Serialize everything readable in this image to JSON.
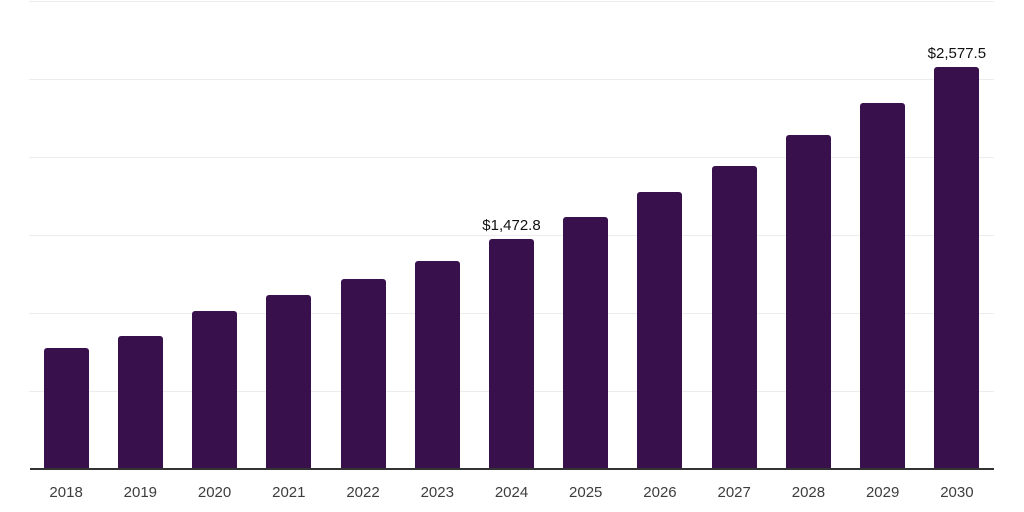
{
  "chart_data": {
    "type": "bar",
    "title": "",
    "xlabel": "",
    "ylabel": "",
    "categories": [
      "2018",
      "2019",
      "2020",
      "2021",
      "2022",
      "2023",
      "2024",
      "2025",
      "2026",
      "2027",
      "2028",
      "2029",
      "2030"
    ],
    "values": [
      775,
      855,
      1010,
      1115,
      1220,
      1335,
      1472.8,
      1617,
      1774,
      1942,
      2139,
      2344,
      2577.5
    ],
    "point_labels": [
      null,
      null,
      null,
      null,
      null,
      null,
      "$1,472.8",
      null,
      null,
      null,
      null,
      null,
      "$2,577.5"
    ],
    "ylim": [
      0,
      3000
    ],
    "gridline_step": 500,
    "grid": "horizontal",
    "legend": "none",
    "y_axis_tick_labels_visible": false,
    "colors": {
      "bar_fill": "#38114c",
      "axis_line": "#333333",
      "gridline": "#ededed",
      "x_tick_label": "#3d3d3d",
      "data_label": "#111111",
      "background": "#ffffff"
    }
  }
}
